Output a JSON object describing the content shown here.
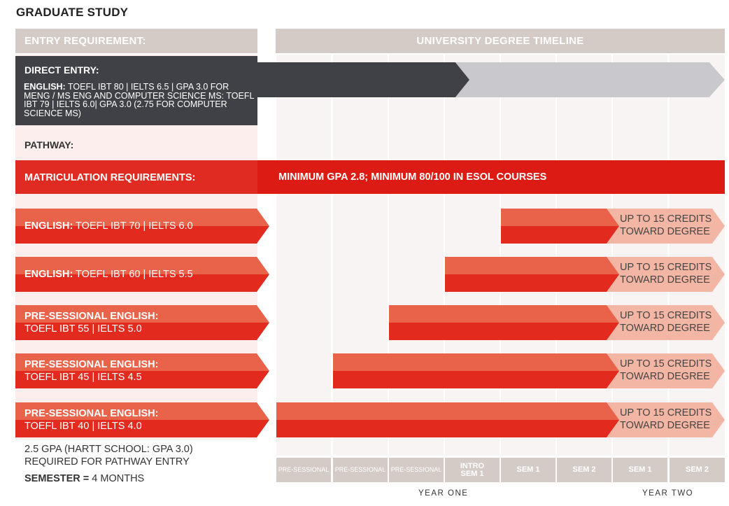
{
  "title": "GRADUATE STUDY",
  "headers": {
    "entry": "ENTRY REQUIREMENT:",
    "timeline": "UNIVERSITY DEGREE TIMELINE"
  },
  "direct_entry": {
    "label": "DIRECT ENTRY:",
    "english_label": "ENGLISH:",
    "text": " TOEFL IBT 80 | IELTS 6.5 | GPA 3.0 FOR MENG / MS ENG AND COMPUTER SCIENCE MS: TOEFL IBT 79 | IELTS 6.0| GPA 3.0 (2.75 FOR COMPUTER SCIENCE MS)"
  },
  "pathway_label": "PATHWAY:",
  "matriculation": {
    "label": "MATRICULATION REQUIREMENTS:",
    "text": "MINIMUM GPA 2.8; MINIMUM 80/100 IN ESOL COURSES"
  },
  "pathways": [
    {
      "prefix": "ENGLISH:",
      "line1": " TOEFL IBT 70  |  IELTS 6.0",
      "line2": "",
      "start_col": 4,
      "credit_line1": "UP TO 15 CREDITS",
      "credit_line2": "TOWARD DEGREE"
    },
    {
      "prefix": "ENGLISH:",
      "line1": " TOEFL IBT 60  |  IELTS 5.5",
      "line2": "",
      "start_col": 3,
      "credit_line1": "UP TO 15 CREDITS",
      "credit_line2": "TOWARD DEGREE"
    },
    {
      "prefix": "PRE-SESSIONAL ENGLISH:",
      "line1": "",
      "line2": "TOEFL IBT 55  |  IELTS 5.0",
      "start_col": 2,
      "credit_line1": "UP TO 15 CREDITS",
      "credit_line2": "TOWARD DEGREE"
    },
    {
      "prefix": "PRE-SESSIONAL ENGLISH:",
      "line1": "",
      "line2": "TOEFL IBT 45  |  IELTS 4.5",
      "start_col": 1,
      "credit_line1": "UP TO 15 CREDITS",
      "credit_line2": "TOWARD DEGREE"
    },
    {
      "prefix": "PRE-SESSIONAL ENGLISH:",
      "line1": "",
      "line2": "TOEFL IBT 40  |  IELTS 4.0",
      "start_col": 0,
      "credit_line1": "UP TO 15 CREDITS",
      "credit_line2": "TOWARD DEGREE"
    }
  ],
  "notes": {
    "gpa_line1": "2.5 GPA (HARTT SCHOOL: GPA 3.0)",
    "gpa_line2": "REQUIRED FOR PATHWAY ENTRY",
    "semester_label": "SEMESTER =",
    "semester_value": " 4 MONTHS"
  },
  "semesters": [
    {
      "line1": "PRE-SESSIONAL",
      "line2": ""
    },
    {
      "line1": "PRE-SESSIONAL",
      "line2": ""
    },
    {
      "line1": "PRE-SESSIONAL",
      "line2": ""
    },
    {
      "line1": "INTRO",
      "line2": "SEM 1"
    },
    {
      "line1": "SEM 1",
      "line2": ""
    },
    {
      "line1": "SEM 2",
      "line2": ""
    },
    {
      "line1": "SEM 1",
      "line2": ""
    },
    {
      "line1": "SEM 2",
      "line2": ""
    }
  ],
  "years": {
    "one": "YEAR ONE",
    "two": "YEAR TWO"
  },
  "colors": {
    "header_bg": "#d5cbc6",
    "dark": "#404146",
    "red": "#e22a1f",
    "light_red": "#e9634a",
    "credit_bg": "#f4b6a4"
  }
}
